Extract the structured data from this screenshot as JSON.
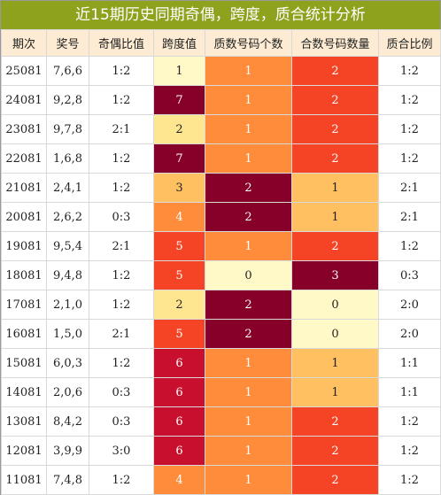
{
  "title": "近15期历史同期奇偶，跨度，质合统计分析",
  "headers": [
    "期次",
    "奖号",
    "奇偶比值",
    "跨度值",
    "质数号码个数",
    "合数号码数量",
    "质合比例"
  ],
  "colors": {
    "title_bg": "#8fa21e",
    "header_bg": "#fdecd3",
    "plain": "#ffffff",
    "pale_yellow": "#fff9c8",
    "light_yellow": "#fde68f",
    "gold": "#fec060",
    "orange": "#fe8c3a",
    "red_orange": "#f54326",
    "red": "#c8102e",
    "dark_red": "#870029"
  },
  "rows": [
    {
      "period": "25081",
      "numbers": "7,6,6",
      "odd_even": "1:2",
      "span": "1",
      "prime_count": "1",
      "composite_count": "2",
      "prime_composite": "1:2",
      "span_color": "#fff9c8",
      "prime_color": "#fe8c3a",
      "comp_color": "#f54326"
    },
    {
      "period": "24081",
      "numbers": "9,2,8",
      "odd_even": "1:2",
      "span": "7",
      "prime_count": "1",
      "composite_count": "2",
      "prime_composite": "1:2",
      "span_color": "#870029",
      "prime_color": "#fe8c3a",
      "comp_color": "#f54326"
    },
    {
      "period": "23081",
      "numbers": "9,7,8",
      "odd_even": "2:1",
      "span": "2",
      "prime_count": "1",
      "composite_count": "2",
      "prime_composite": "1:2",
      "span_color": "#fde68f",
      "prime_color": "#fe8c3a",
      "comp_color": "#f54326"
    },
    {
      "period": "22081",
      "numbers": "1,6,8",
      "odd_even": "1:2",
      "span": "7",
      "prime_count": "1",
      "composite_count": "2",
      "prime_composite": "1:2",
      "span_color": "#870029",
      "prime_color": "#fe8c3a",
      "comp_color": "#f54326"
    },
    {
      "period": "21081",
      "numbers": "2,4,1",
      "odd_even": "1:2",
      "span": "3",
      "prime_count": "2",
      "composite_count": "1",
      "prime_composite": "2:1",
      "span_color": "#fec060",
      "prime_color": "#870029",
      "comp_color": "#fec060"
    },
    {
      "period": "20081",
      "numbers": "2,6,2",
      "odd_even": "0:3",
      "span": "4",
      "prime_count": "2",
      "composite_count": "1",
      "prime_composite": "2:1",
      "span_color": "#fe8c3a",
      "prime_color": "#870029",
      "comp_color": "#fec060"
    },
    {
      "period": "19081",
      "numbers": "9,5,4",
      "odd_even": "2:1",
      "span": "5",
      "prime_count": "1",
      "composite_count": "2",
      "prime_composite": "1:2",
      "span_color": "#f54326",
      "prime_color": "#fe8c3a",
      "comp_color": "#f54326"
    },
    {
      "period": "18081",
      "numbers": "9,4,8",
      "odd_even": "1:2",
      "span": "5",
      "prime_count": "0",
      "composite_count": "3",
      "prime_composite": "0:3",
      "span_color": "#f54326",
      "prime_color": "#fff9c8",
      "comp_color": "#870029"
    },
    {
      "period": "17081",
      "numbers": "2,1,0",
      "odd_even": "1:2",
      "span": "2",
      "prime_count": "2",
      "composite_count": "0",
      "prime_composite": "2:0",
      "span_color": "#fde68f",
      "prime_color": "#870029",
      "comp_color": "#fff9c8"
    },
    {
      "period": "16081",
      "numbers": "1,5,0",
      "odd_even": "2:1",
      "span": "5",
      "prime_count": "2",
      "composite_count": "0",
      "prime_composite": "2:0",
      "span_color": "#f54326",
      "prime_color": "#870029",
      "comp_color": "#fff9c8"
    },
    {
      "period": "15081",
      "numbers": "6,0,3",
      "odd_even": "1:2",
      "span": "6",
      "prime_count": "1",
      "composite_count": "1",
      "prime_composite": "1:1",
      "span_color": "#c8102e",
      "prime_color": "#fe8c3a",
      "comp_color": "#fec060"
    },
    {
      "period": "14081",
      "numbers": "2,0,6",
      "odd_even": "0:3",
      "span": "6",
      "prime_count": "1",
      "composite_count": "1",
      "prime_composite": "1:1",
      "span_color": "#c8102e",
      "prime_color": "#fe8c3a",
      "comp_color": "#fec060"
    },
    {
      "period": "13081",
      "numbers": "8,4,2",
      "odd_even": "0:3",
      "span": "6",
      "prime_count": "1",
      "composite_count": "2",
      "prime_composite": "1:2",
      "span_color": "#c8102e",
      "prime_color": "#fe8c3a",
      "comp_color": "#f54326"
    },
    {
      "period": "12081",
      "numbers": "3,9,9",
      "odd_even": "3:0",
      "span": "6",
      "prime_count": "1",
      "composite_count": "2",
      "prime_composite": "1:2",
      "span_color": "#c8102e",
      "prime_color": "#fe8c3a",
      "comp_color": "#f54326"
    },
    {
      "period": "11081",
      "numbers": "7,4,8",
      "odd_even": "1:2",
      "span": "4",
      "prime_count": "1",
      "composite_count": "2",
      "prime_composite": "1:2",
      "span_color": "#fe8c3a",
      "prime_color": "#fe8c3a",
      "comp_color": "#f54326"
    }
  ]
}
